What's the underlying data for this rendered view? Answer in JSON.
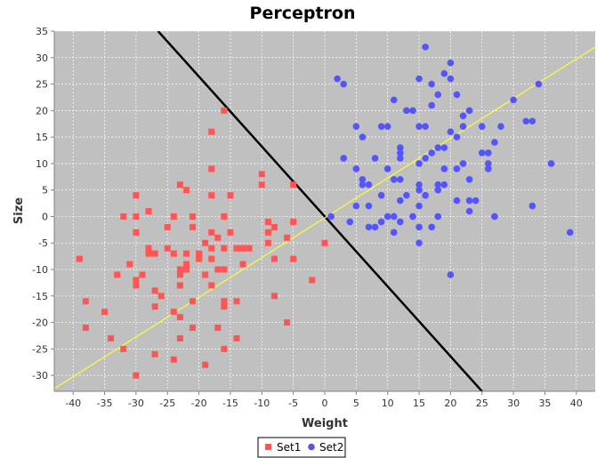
{
  "chart_data": {
    "type": "scatter",
    "title": "Perceptron",
    "xlabel": "Weight",
    "ylabel": "Size",
    "xlim": [
      -43,
      43
    ],
    "ylim": [
      -33,
      35
    ],
    "x_ticks": [
      -40,
      -35,
      -30,
      -25,
      -20,
      -15,
      -10,
      -5,
      0,
      5,
      10,
      15,
      20,
      25,
      30,
      35,
      40
    ],
    "y_ticks": [
      -30,
      -25,
      -20,
      -15,
      -10,
      -5,
      0,
      5,
      10,
      15,
      20,
      25,
      30,
      35
    ],
    "grid": true,
    "legend_position": "bottom-center",
    "background_color": "#c0c0c0",
    "series": [
      {
        "name": "Set1",
        "marker": "square",
        "color": "#ff5555",
        "points": [
          [
            -39,
            -8
          ],
          [
            -38,
            -16
          ],
          [
            -38,
            -21
          ],
          [
            -35,
            -18
          ],
          [
            -34,
            -23
          ],
          [
            -33,
            -11
          ],
          [
            -32,
            -25
          ],
          [
            -32,
            0
          ],
          [
            -31,
            -9
          ],
          [
            -30,
            4
          ],
          [
            -30,
            0
          ],
          [
            -30,
            -3
          ],
          [
            -30,
            -12
          ],
          [
            -30,
            -13
          ],
          [
            -30,
            -30
          ],
          [
            -29,
            -11
          ],
          [
            -28,
            1
          ],
          [
            -28,
            -6
          ],
          [
            -28,
            -7
          ],
          [
            -27,
            -7
          ],
          [
            -27,
            -14
          ],
          [
            -27,
            -17
          ],
          [
            -27,
            -26
          ],
          [
            -26,
            -15
          ],
          [
            -25,
            -2
          ],
          [
            -25,
            -6
          ],
          [
            -24,
            0
          ],
          [
            -24,
            -7
          ],
          [
            -24,
            -18
          ],
          [
            -24,
            -27
          ],
          [
            -23,
            6
          ],
          [
            -23,
            -10
          ],
          [
            -23,
            -11
          ],
          [
            -23,
            -13
          ],
          [
            -23,
            -19
          ],
          [
            -23,
            -23
          ],
          [
            -22,
            5
          ],
          [
            -22,
            -7
          ],
          [
            -22,
            -9
          ],
          [
            -22,
            -10
          ],
          [
            -21,
            0
          ],
          [
            -21,
            -2
          ],
          [
            -21,
            -16
          ],
          [
            -21,
            -21
          ],
          [
            -20,
            -7
          ],
          [
            -20,
            -8
          ],
          [
            -19,
            -5
          ],
          [
            -19,
            -11
          ],
          [
            -19,
            -28
          ],
          [
            -18,
            16
          ],
          [
            -18,
            9
          ],
          [
            -18,
            4
          ],
          [
            -18,
            -3
          ],
          [
            -18,
            -6
          ],
          [
            -18,
            -8
          ],
          [
            -18,
            -13
          ],
          [
            -17,
            -4
          ],
          [
            -17,
            -10
          ],
          [
            -17,
            -21
          ],
          [
            -16,
            20
          ],
          [
            -16,
            0
          ],
          [
            -16,
            -6
          ],
          [
            -16,
            -10
          ],
          [
            -16,
            -16
          ],
          [
            -16,
            -17
          ],
          [
            -16,
            -25
          ],
          [
            -15,
            4
          ],
          [
            -15,
            -3
          ],
          [
            -14,
            -6
          ],
          [
            -14,
            -16
          ],
          [
            -14,
            -23
          ],
          [
            -13,
            -6
          ],
          [
            -13,
            -9
          ],
          [
            -12,
            -6
          ],
          [
            -10,
            8
          ],
          [
            -10,
            6
          ],
          [
            -9,
            -1
          ],
          [
            -9,
            -3
          ],
          [
            -9,
            -5
          ],
          [
            -8,
            -2
          ],
          [
            -8,
            -8
          ],
          [
            -8,
            -15
          ],
          [
            -6,
            -4
          ],
          [
            -6,
            -20
          ],
          [
            -5,
            6
          ],
          [
            -5,
            -1
          ],
          [
            -5,
            -8
          ],
          [
            -2,
            -12
          ],
          [
            0,
            -5
          ]
        ]
      },
      {
        "name": "Set2",
        "marker": "circle",
        "color": "#5555ff",
        "points": [
          [
            1,
            0
          ],
          [
            2,
            26
          ],
          [
            3,
            25
          ],
          [
            3,
            11
          ],
          [
            4,
            -1
          ],
          [
            5,
            17
          ],
          [
            5,
            9
          ],
          [
            5,
            2
          ],
          [
            6,
            15
          ],
          [
            6,
            7
          ],
          [
            6,
            6
          ],
          [
            7,
            6
          ],
          [
            7,
            2
          ],
          [
            7,
            -2
          ],
          [
            8,
            11
          ],
          [
            8,
            -2
          ],
          [
            9,
            17
          ],
          [
            9,
            4
          ],
          [
            9,
            -1
          ],
          [
            10,
            17
          ],
          [
            10,
            0
          ],
          [
            10,
            9
          ],
          [
            11,
            22
          ],
          [
            11,
            7
          ],
          [
            11,
            0
          ],
          [
            11,
            -3
          ],
          [
            12,
            13
          ],
          [
            12,
            12
          ],
          [
            12,
            11
          ],
          [
            12,
            7
          ],
          [
            12,
            3
          ],
          [
            12,
            -1
          ],
          [
            13,
            20
          ],
          [
            13,
            4
          ],
          [
            14,
            20
          ],
          [
            14,
            0
          ],
          [
            15,
            26
          ],
          [
            15,
            17
          ],
          [
            15,
            10
          ],
          [
            15,
            6
          ],
          [
            15,
            5
          ],
          [
            15,
            2
          ],
          [
            15,
            -2
          ],
          [
            15,
            -5
          ],
          [
            16,
            32
          ],
          [
            16,
            17
          ],
          [
            16,
            11
          ],
          [
            16,
            4
          ],
          [
            17,
            25
          ],
          [
            17,
            21
          ],
          [
            17,
            12
          ],
          [
            17,
            -2
          ],
          [
            18,
            23
          ],
          [
            18,
            13
          ],
          [
            18,
            6
          ],
          [
            18,
            5
          ],
          [
            18,
            0
          ],
          [
            19,
            27
          ],
          [
            19,
            13
          ],
          [
            19,
            9
          ],
          [
            19,
            6
          ],
          [
            20,
            29
          ],
          [
            20,
            26
          ],
          [
            20,
            16
          ],
          [
            20,
            -11
          ],
          [
            21,
            23
          ],
          [
            21,
            15
          ],
          [
            21,
            9
          ],
          [
            21,
            3
          ],
          [
            22,
            19
          ],
          [
            22,
            17
          ],
          [
            22,
            10
          ],
          [
            23,
            20
          ],
          [
            23,
            7
          ],
          [
            23,
            3
          ],
          [
            23,
            1
          ],
          [
            24,
            3
          ],
          [
            25,
            17
          ],
          [
            25,
            12
          ],
          [
            26,
            12
          ],
          [
            26,
            10
          ],
          [
            26,
            9
          ],
          [
            27,
            14
          ],
          [
            27,
            0
          ],
          [
            28,
            17
          ],
          [
            30,
            22
          ],
          [
            32,
            18
          ],
          [
            33,
            18
          ],
          [
            33,
            2
          ],
          [
            34,
            25
          ],
          [
            36,
            10
          ],
          [
            39,
            -3
          ]
        ]
      }
    ],
    "lines": [
      {
        "name": "decision-boundary",
        "color": "#000000",
        "points": [
          [
            -26.5,
            35
          ],
          [
            25,
            -33
          ]
        ]
      },
      {
        "name": "reference-line",
        "color": "#ffff33",
        "points": [
          [
            -43,
            -32.5
          ],
          [
            43,
            32
          ]
        ]
      }
    ]
  }
}
